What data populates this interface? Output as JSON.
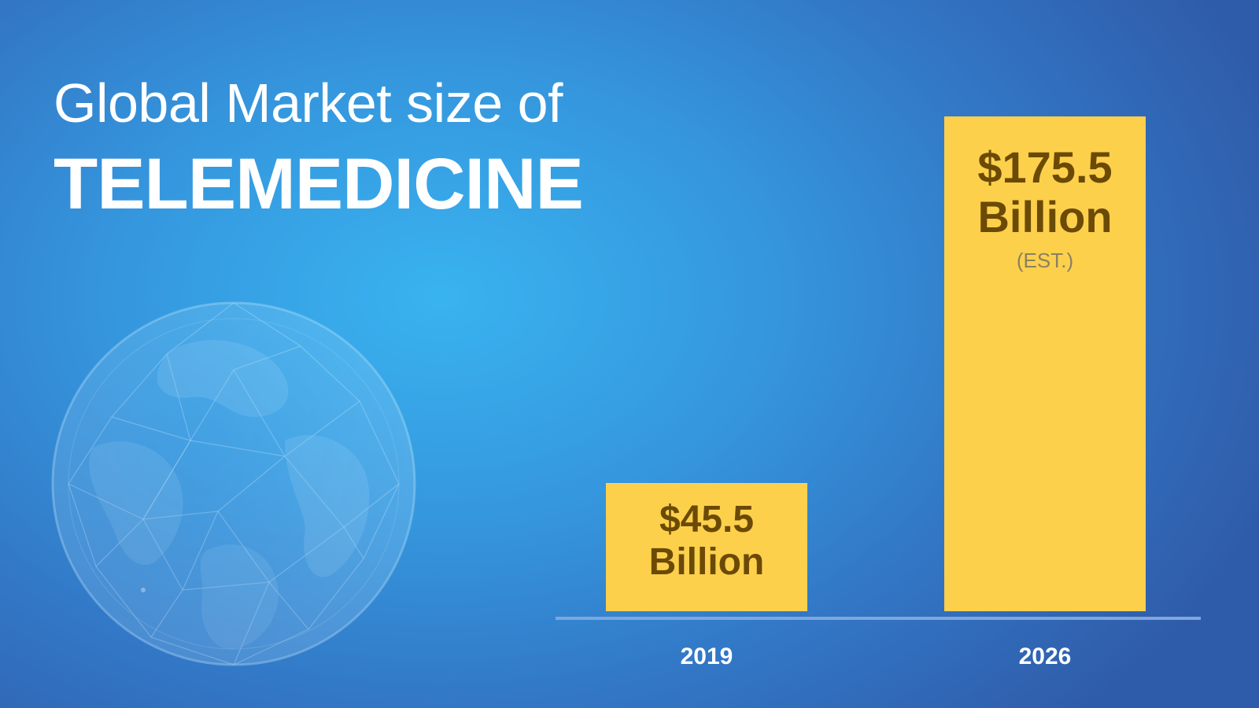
{
  "title": {
    "line1": "Global Market size of",
    "line2": "TELEMEDICINE"
  },
  "colors": {
    "bar": "#fdd04c",
    "bar_text": "#6b4a06",
    "background_center": "#39b3f0",
    "background_edge": "#2f5caa",
    "axis": "#7fa7dc"
  },
  "chart_data": {
    "type": "bar",
    "title": "Global Market size of TELEMEDICINE",
    "categories": [
      "2019",
      "2026"
    ],
    "values": [
      45.5,
      175.5
    ],
    "unit": "Billion",
    "data_labels": [
      {
        "amount": "$45.5",
        "unit": "Billion",
        "note": ""
      },
      {
        "amount": "$175.5",
        "unit": "Billion",
        "note": "(EST.)"
      }
    ],
    "ylim": [
      0,
      175.5
    ],
    "grid": false,
    "legend": "none"
  }
}
